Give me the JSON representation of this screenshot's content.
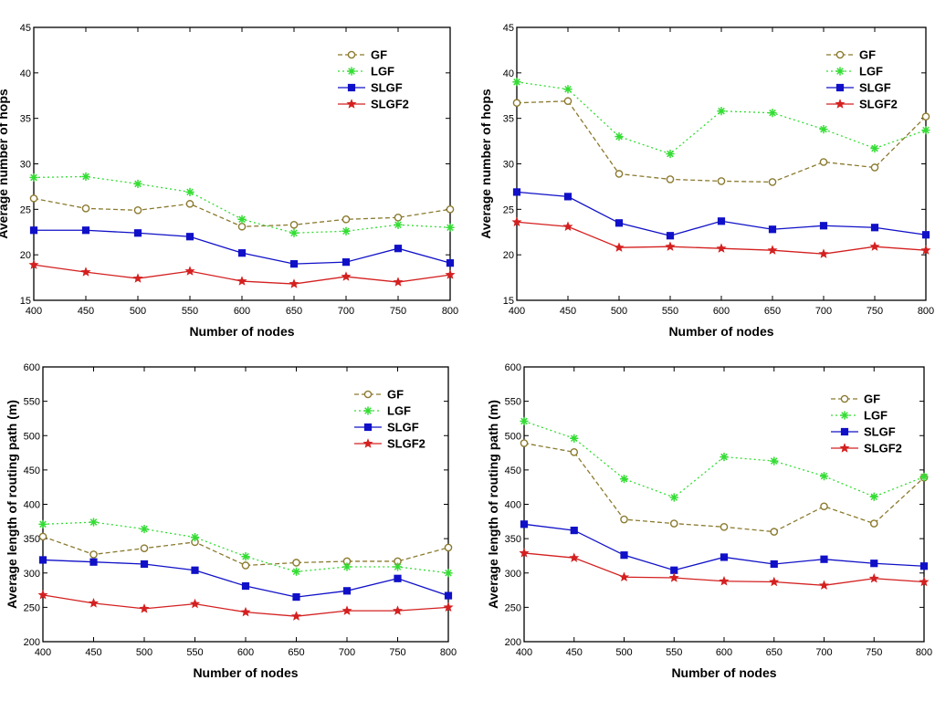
{
  "chart_data": [
    {
      "type": "line",
      "title": "",
      "xlabel": "Number of nodes",
      "ylabel": "Average number of hops",
      "xlim": [
        400,
        800
      ],
      "ylim": [
        15,
        45
      ],
      "xticks": [
        400,
        450,
        500,
        550,
        600,
        650,
        700,
        750,
        800
      ],
      "yticks": [
        15,
        20,
        25,
        30,
        35,
        40,
        45
      ],
      "grid": false,
      "legend_position": "top-right",
      "x": [
        400,
        450,
        500,
        550,
        600,
        650,
        700,
        750,
        800
      ],
      "series": [
        {
          "name": "GF",
          "color": "#8b7a2f",
          "marker": "circle-open",
          "dash": "dashed",
          "values": [
            26.2,
            25.1,
            24.9,
            25.6,
            23.1,
            23.3,
            23.9,
            24.1,
            25.0
          ]
        },
        {
          "name": "LGF",
          "color": "#33dd33",
          "marker": "asterisk",
          "dash": "dotted",
          "values": [
            28.5,
            28.6,
            27.8,
            26.9,
            23.9,
            22.4,
            22.6,
            23.3,
            23.0
          ]
        },
        {
          "name": "SLGF",
          "color": "#1010c8",
          "marker": "square-filled",
          "dash": "solid",
          "values": [
            22.7,
            22.7,
            22.4,
            22.0,
            20.2,
            19.0,
            19.2,
            20.7,
            19.1
          ]
        },
        {
          "name": "SLGF2",
          "color": "#d42020",
          "marker": "star",
          "dash": "solid",
          "values": [
            18.9,
            18.1,
            17.4,
            18.2,
            17.1,
            16.8,
            17.6,
            17.0,
            17.8
          ]
        }
      ]
    },
    {
      "type": "line",
      "title": "",
      "xlabel": "Number of nodes",
      "ylabel": "Average number of hops",
      "xlim": [
        400,
        800
      ],
      "ylim": [
        15,
        45
      ],
      "xticks": [
        400,
        450,
        500,
        550,
        600,
        650,
        700,
        750,
        800
      ],
      "yticks": [
        15,
        20,
        25,
        30,
        35,
        40,
        45
      ],
      "grid": false,
      "legend_position": "top-right",
      "x": [
        400,
        450,
        500,
        550,
        600,
        650,
        700,
        750,
        800
      ],
      "series": [
        {
          "name": "GF",
          "color": "#8b7a2f",
          "marker": "circle-open",
          "dash": "dashed",
          "values": [
            36.7,
            36.9,
            28.9,
            28.3,
            28.1,
            28.0,
            30.2,
            29.6,
            35.2
          ]
        },
        {
          "name": "LGF",
          "color": "#33dd33",
          "marker": "asterisk",
          "dash": "dotted",
          "values": [
            39.0,
            38.2,
            33.0,
            31.1,
            35.8,
            35.6,
            33.8,
            31.7,
            33.7
          ]
        },
        {
          "name": "SLGF",
          "color": "#1010c8",
          "marker": "square-filled",
          "dash": "solid",
          "values": [
            26.9,
            26.4,
            23.5,
            22.1,
            23.7,
            22.8,
            23.2,
            23.0,
            22.2
          ]
        },
        {
          "name": "SLGF2",
          "color": "#d42020",
          "marker": "star",
          "dash": "solid",
          "values": [
            23.6,
            23.1,
            20.8,
            20.9,
            20.7,
            20.5,
            20.1,
            20.9,
            20.5
          ]
        }
      ]
    },
    {
      "type": "line",
      "title": "",
      "xlabel": "Number of nodes",
      "ylabel": "Average length of routing path (m)",
      "xlim": [
        400,
        800
      ],
      "ylim": [
        200,
        600
      ],
      "xticks": [
        400,
        450,
        500,
        550,
        600,
        650,
        700,
        750,
        800
      ],
      "yticks": [
        200,
        250,
        300,
        350,
        400,
        450,
        500,
        550,
        600
      ],
      "grid": false,
      "legend_position": "top-right",
      "x": [
        400,
        450,
        500,
        550,
        600,
        650,
        700,
        750,
        800
      ],
      "series": [
        {
          "name": "GF",
          "color": "#8b7a2f",
          "marker": "circle-open",
          "dash": "dashed",
          "values": [
            353,
            327,
            336,
            345,
            311,
            315,
            317,
            317,
            337
          ]
        },
        {
          "name": "LGF",
          "color": "#33dd33",
          "marker": "asterisk",
          "dash": "dotted",
          "values": [
            371,
            374,
            364,
            352,
            324,
            302,
            309,
            309,
            300
          ]
        },
        {
          "name": "SLGF",
          "color": "#1010c8",
          "marker": "square-filled",
          "dash": "solid",
          "values": [
            319,
            316,
            313,
            304,
            281,
            265,
            274,
            292,
            267
          ]
        },
        {
          "name": "SLGF2",
          "color": "#d42020",
          "marker": "star",
          "dash": "solid",
          "values": [
            268,
            256,
            248,
            255,
            243,
            237,
            245,
            245,
            250
          ]
        }
      ]
    },
    {
      "type": "line",
      "title": "",
      "xlabel": "Number of nodes",
      "ylabel": "Average length of routing path (m)",
      "xlim": [
        400,
        800
      ],
      "ylim": [
        200,
        600
      ],
      "xticks": [
        400,
        450,
        500,
        550,
        600,
        650,
        700,
        750,
        800
      ],
      "yticks": [
        200,
        250,
        300,
        350,
        400,
        450,
        500,
        550,
        600
      ],
      "grid": false,
      "legend_position": "top-right",
      "x": [
        400,
        450,
        500,
        550,
        600,
        650,
        700,
        750,
        800
      ],
      "series": [
        {
          "name": "GF",
          "color": "#8b7a2f",
          "marker": "circle-open",
          "dash": "dashed",
          "values": [
            489,
            476,
            378,
            372,
            367,
            360,
            397,
            372,
            439
          ]
        },
        {
          "name": "LGF",
          "color": "#33dd33",
          "marker": "asterisk",
          "dash": "dotted",
          "values": [
            521,
            496,
            437,
            410,
            469,
            463,
            441,
            411,
            440
          ]
        },
        {
          "name": "SLGF",
          "color": "#1010c8",
          "marker": "square-filled",
          "dash": "solid",
          "values": [
            371,
            362,
            326,
            304,
            323,
            313,
            320,
            314,
            310
          ]
        },
        {
          "name": "SLGF2",
          "color": "#d42020",
          "marker": "star",
          "dash": "solid",
          "values": [
            329,
            322,
            294,
            293,
            288,
            287,
            282,
            292,
            287
          ]
        }
      ]
    }
  ]
}
